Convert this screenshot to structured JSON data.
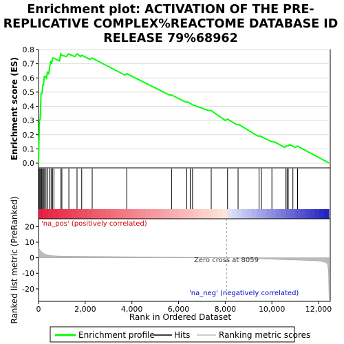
{
  "chart_data": {
    "type": "line",
    "title_lines": [
      "Enrichment plot: ACTIVATION OF THE PRE-",
      "REPLICATIVE COMPLEX%REACTOME DATABASE ID",
      "RELEASE 79%68962"
    ],
    "xlabel": "Rank in Ordered Dataset",
    "ylabel_top": "Enrichment score (ES)",
    "ylabel_bottom": "Ranked list metric (PreRanked)",
    "xlim": [
      0,
      12500
    ],
    "x_ticks": [
      0,
      2000,
      4000,
      6000,
      8000,
      10000,
      12000
    ],
    "x_tick_labels": [
      "0",
      "2,000",
      "4,000",
      "6,000",
      "8,000",
      "10,000",
      "12,000"
    ],
    "es_ylim": [
      0,
      0.8
    ],
    "es_ticks": [
      0.0,
      0.1,
      0.2,
      0.3,
      0.4,
      0.5,
      0.6,
      0.7,
      0.8
    ],
    "es_tick_labels": [
      "0.0",
      "0.1",
      "0.2",
      "0.3",
      "0.4",
      "0.5",
      "0.6",
      "0.7",
      "0.8"
    ],
    "metric_ylim": [
      -28,
      25
    ],
    "metric_ticks": [
      20,
      10,
      0,
      -10,
      -20
    ],
    "metric_tick_labels": [
      "20",
      "10",
      "0",
      "-10",
      "-20"
    ],
    "enrichment_profile": [
      [
        0,
        0.0
      ],
      [
        20,
        0.17
      ],
      [
        40,
        0.3
      ],
      [
        70,
        0.31
      ],
      [
        90,
        0.4
      ],
      [
        110,
        0.49
      ],
      [
        150,
        0.49
      ],
      [
        180,
        0.55
      ],
      [
        210,
        0.55
      ],
      [
        250,
        0.61
      ],
      [
        300,
        0.61
      ],
      [
        340,
        0.6
      ],
      [
        380,
        0.64
      ],
      [
        440,
        0.63
      ],
      [
        480,
        0.68
      ],
      [
        520,
        0.72
      ],
      [
        560,
        0.7
      ],
      [
        600,
        0.74
      ],
      [
        650,
        0.74
      ],
      [
        900,
        0.72
      ],
      [
        950,
        0.77
      ],
      [
        1000,
        0.76
      ],
      [
        1200,
        0.75
      ],
      [
        1280,
        0.77
      ],
      [
        1550,
        0.75
      ],
      [
        1650,
        0.77
      ],
      [
        1800,
        0.75
      ],
      [
        1850,
        0.76
      ],
      [
        2200,
        0.73
      ],
      [
        2300,
        0.74
      ],
      [
        3700,
        0.62
      ],
      [
        3780,
        0.63
      ],
      [
        5600,
        0.48
      ],
      [
        5700,
        0.48
      ],
      [
        6300,
        0.43
      ],
      [
        6400,
        0.43
      ],
      [
        6600,
        0.41
      ],
      [
        7300,
        0.37
      ],
      [
        7400,
        0.37
      ],
      [
        8000,
        0.3
      ],
      [
        8100,
        0.31
      ],
      [
        8500,
        0.27
      ],
      [
        8600,
        0.27
      ],
      [
        9400,
        0.19
      ],
      [
        9500,
        0.19
      ],
      [
        10000,
        0.15
      ],
      [
        10100,
        0.15
      ],
      [
        10550,
        0.11
      ],
      [
        10600,
        0.12
      ],
      [
        10700,
        0.12
      ],
      [
        10750,
        0.13
      ],
      [
        10900,
        0.12
      ],
      [
        11000,
        0.11
      ],
      [
        11100,
        0.12
      ],
      [
        11200,
        0.11
      ],
      [
        12450,
        0.0
      ]
    ],
    "hits": [
      20,
      55,
      90,
      130,
      170,
      215,
      260,
      320,
      390,
      470,
      540,
      600,
      660,
      960,
      1000,
      1300,
      1650,
      1850,
      2300,
      3780,
      5700,
      6350,
      6500,
      6600,
      7400,
      8100,
      8550,
      9450,
      9550,
      10000,
      10600,
      10650,
      10700,
      10900,
      11100
    ],
    "zero_cross": 8059,
    "n_genes": 12450,
    "annotations": {
      "pos": "'na_pos' (positively correlated)",
      "neg": "'na_neg' (negatively correlated)",
      "zero": "Zero cross at 8059"
    },
    "legend": [
      {
        "label": "Enrichment profile",
        "color": "#00ff00"
      },
      {
        "label": "Hits",
        "color": "#000000"
      },
      {
        "label": "Ranking metric scores",
        "color": "#bbbbbb"
      }
    ],
    "colors": {
      "profile": "#00ff00",
      "metric_fill": "#bbbbbb",
      "frame": "#000000"
    }
  }
}
